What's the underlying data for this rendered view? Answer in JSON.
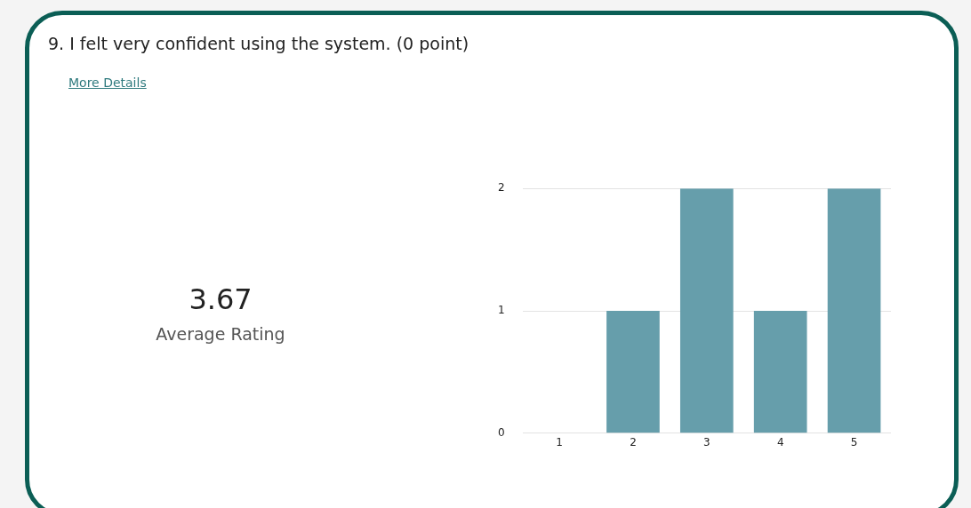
{
  "chart_data": {
    "type": "bar",
    "title": "9.  I felt very confident using the system. (0 point)",
    "annotations": [
      "More Details",
      "3.67",
      "Average Rating"
    ],
    "categories": [
      "1",
      "2",
      "3",
      "4",
      "5"
    ],
    "values": [
      0,
      1,
      2,
      1,
      2
    ],
    "color": "#669eab",
    "ylim": [
      0,
      2
    ],
    "yticks": [
      0,
      1,
      2
    ],
    "grid": "y",
    "legend": false
  }
}
